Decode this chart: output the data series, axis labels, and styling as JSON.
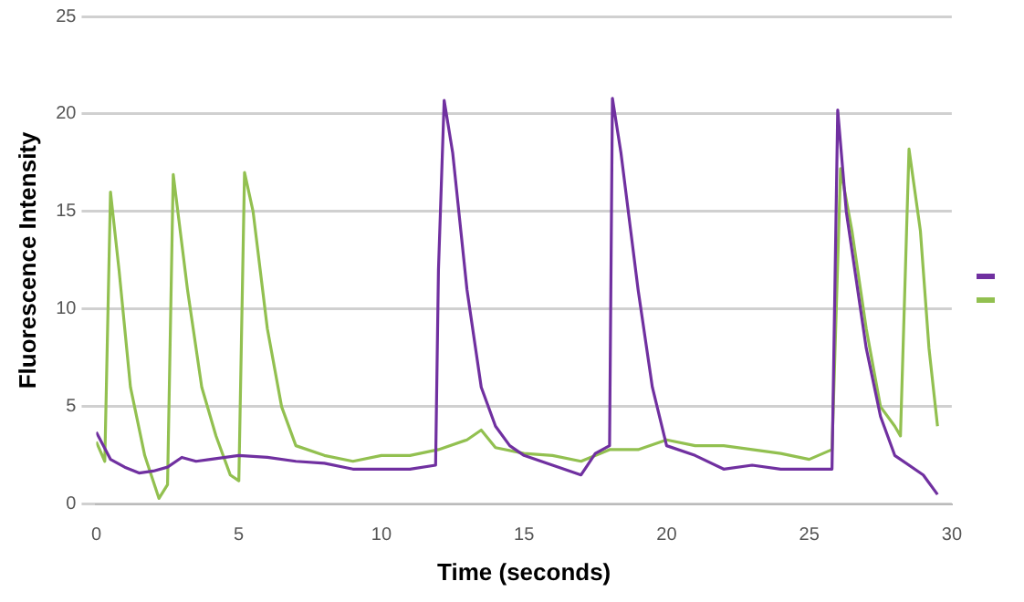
{
  "chart_data": {
    "type": "line",
    "xlabel": "Time (seconds)",
    "ylabel": "Fluorescence Intensity",
    "xlim": [
      0,
      30
    ],
    "xticks": [
      0,
      5,
      10,
      15,
      20,
      25,
      30
    ],
    "ylim": [
      0,
      25
    ],
    "yticks": [
      0,
      5,
      10,
      15,
      20,
      25
    ],
    "grid": "y",
    "marker": "none",
    "line_style": "solid",
    "series": [
      {
        "color": "#7030a0",
        "x": [
          0,
          0.5,
          1,
          1.5,
          2,
          2.5,
          3,
          3.5,
          4,
          5,
          6,
          7,
          8,
          9,
          10,
          11,
          11.9,
          12,
          12.2,
          12.5,
          13,
          13.5,
          14,
          14.5,
          15,
          16,
          17,
          17.5,
          18,
          18.1,
          18.4,
          19,
          19.5,
          20,
          21,
          22,
          23,
          24,
          25,
          25.8,
          26,
          26.3,
          27,
          27.5,
          28,
          29,
          29.5
        ],
        "values": [
          3.7,
          2.3,
          1.9,
          1.6,
          1.7,
          1.9,
          2.4,
          2.2,
          2.3,
          2.5,
          2.4,
          2.2,
          2.1,
          1.8,
          1.8,
          1.8,
          2,
          12,
          20.7,
          18,
          11,
          6,
          4,
          3,
          2.5,
          2,
          1.5,
          2.6,
          3,
          20.8,
          18,
          11,
          6,
          3,
          2.5,
          1.8,
          2,
          1.8,
          1.8,
          1.8,
          20.2,
          15,
          8,
          4.5,
          2.5,
          1.5,
          0.5
        ]
      },
      {
        "color": "#92c050",
        "x": [
          0,
          0.3,
          0.5,
          0.8,
          1.2,
          1.7,
          2.2,
          2.5,
          2.7,
          3.2,
          3.7,
          4.2,
          4.7,
          5,
          5.2,
          5.5,
          6,
          6.5,
          7,
          8,
          9,
          10,
          11,
          12,
          13,
          13.5,
          14,
          15,
          16,
          17,
          18,
          19,
          20,
          21,
          22,
          23,
          24,
          25,
          25.8,
          26.1,
          26.5,
          27,
          27.5,
          28,
          28.2,
          28.5,
          28.9,
          29.2,
          29.5
        ],
        "values": [
          3.2,
          2.2,
          16,
          12,
          6,
          2.5,
          0.3,
          1,
          16.9,
          11,
          6,
          3.5,
          1.5,
          1.2,
          17,
          15,
          9,
          5,
          3,
          2.5,
          2.2,
          2.5,
          2.5,
          2.8,
          3.3,
          3.8,
          2.9,
          2.6,
          2.5,
          2.2,
          2.8,
          2.8,
          3.3,
          3,
          3,
          2.8,
          2.6,
          2.3,
          2.8,
          17.2,
          14,
          9,
          5,
          4,
          3.5,
          18.2,
          14,
          8,
          4
        ]
      }
    ]
  }
}
